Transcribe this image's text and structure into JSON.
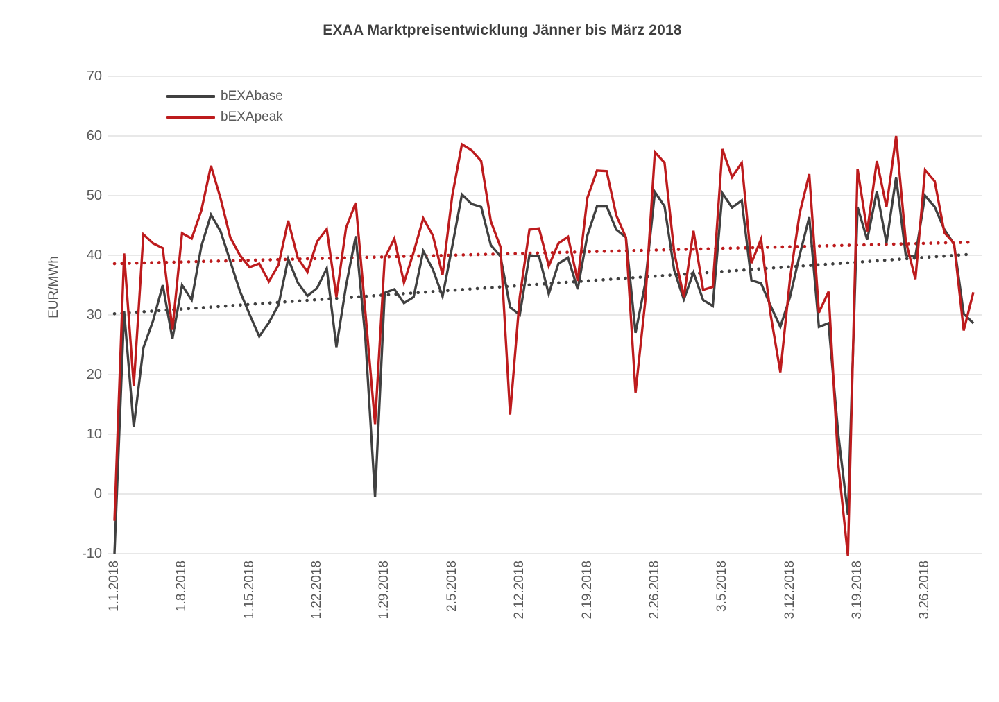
{
  "title": "EXAA Marktpreisentwicklung Jänner bis März 2018",
  "colors": {
    "grid": "#D9D9D9",
    "text": "#595959",
    "title": "#404040",
    "background": "#FFFFFF"
  },
  "y_axis": {
    "label": "EUR/MWh",
    "ticks": [
      70,
      60,
      50,
      40,
      30,
      20,
      10,
      0,
      -10
    ]
  },
  "x_axis": {
    "tick_labels": [
      "1.1.2018",
      "1.8.2018",
      "1.15.2018",
      "1.22.2018",
      "1.29.2018",
      "2.5.2018",
      "2.12.2018",
      "2.19.2018",
      "2.26.2018",
      "3.5.2018",
      "3.12.2018",
      "3.19.2018",
      "3.26.2018"
    ]
  },
  "legend": {
    "items": [
      {
        "label": "bEXAbase",
        "color": "#404040"
      },
      {
        "label": "bEXApeak",
        "color": "#BD1B1D"
      }
    ]
  },
  "chart_data": {
    "type": "line",
    "title": "EXAA Marktpreisentwicklung Jänner bis März 2018",
    "ylabel": "EUR/MWh",
    "ylim": [
      -10,
      70
    ],
    "grid": "horizontal",
    "legend_position": "top-left-inside",
    "xtick_step": 7,
    "xtick_labels": [
      "1.1.2018",
      "1.8.2018",
      "1.15.2018",
      "1.22.2018",
      "1.29.2018",
      "2.5.2018",
      "2.12.2018",
      "2.19.2018",
      "2.26.2018",
      "3.5.2018",
      "3.12.2018",
      "3.19.2018",
      "3.26.2018"
    ],
    "x_dates": [
      "1.1.2018",
      "1.2.2018",
      "1.3.2018",
      "1.4.2018",
      "1.5.2018",
      "1.6.2018",
      "1.7.2018",
      "1.8.2018",
      "1.9.2018",
      "1.10.2018",
      "1.11.2018",
      "1.12.2018",
      "1.13.2018",
      "1.14.2018",
      "1.15.2018",
      "1.16.2018",
      "1.17.2018",
      "1.18.2018",
      "1.19.2018",
      "1.20.2018",
      "1.21.2018",
      "1.22.2018",
      "1.23.2018",
      "1.24.2018",
      "1.25.2018",
      "1.26.2018",
      "1.27.2018",
      "1.28.2018",
      "1.29.2018",
      "1.30.2018",
      "1.31.2018",
      "2.1.2018",
      "2.2.2018",
      "2.3.2018",
      "2.4.2018",
      "2.5.2018",
      "2.6.2018",
      "2.7.2018",
      "2.8.2018",
      "2.9.2018",
      "2.10.2018",
      "2.11.2018",
      "2.12.2018",
      "2.13.2018",
      "2.14.2018",
      "2.15.2018",
      "2.16.2018",
      "2.17.2018",
      "2.18.2018",
      "2.19.2018",
      "2.20.2018",
      "2.21.2018",
      "2.22.2018",
      "2.23.2018",
      "2.24.2018",
      "2.25.2018",
      "2.26.2018",
      "2.27.2018",
      "2.28.2018",
      "3.1.2018",
      "3.2.2018",
      "3.3.2018",
      "3.4.2018",
      "3.5.2018",
      "3.6.2018",
      "3.7.2018",
      "3.8.2018",
      "3.9.2018",
      "3.10.2018",
      "3.11.2018",
      "3.12.2018",
      "3.13.2018",
      "3.14.2018",
      "3.15.2018",
      "3.16.2018",
      "3.17.2018",
      "3.18.2018",
      "3.19.2018",
      "3.20.2018",
      "3.21.2018",
      "3.22.2018",
      "3.23.2018",
      "3.24.2018",
      "3.25.2018",
      "3.26.2018",
      "3.27.2018",
      "3.28.2018",
      "3.29.2018",
      "3.30.2018",
      "3.31.2018"
    ],
    "series": [
      {
        "name": "bEXAbase",
        "color": "#404040",
        "values": [
          -10.0,
          30.6,
          11.2,
          24.5,
          29.0,
          35.0,
          26.0,
          35.0,
          32.5,
          41.5,
          46.8,
          44.0,
          39.0,
          34.0,
          30.1,
          26.4,
          28.7,
          31.7,
          39.4,
          35.4,
          33.2,
          34.5,
          37.8,
          24.6,
          34.9,
          43.2,
          26.0,
          -0.5,
          33.7,
          34.3,
          32.0,
          33.0,
          40.7,
          37.6,
          33.1,
          41.5,
          50.2,
          48.6,
          48.1,
          41.7,
          39.8,
          31.3,
          30.0,
          40.0,
          39.8,
          33.5,
          38.6,
          39.6,
          34.3,
          43.3,
          48.2,
          48.2,
          44.3,
          43.0,
          27.0,
          35.3,
          50.6,
          48.2,
          37.5,
          32.6,
          37.1,
          32.5,
          31.5,
          50.4,
          48.0,
          49.2,
          35.8,
          35.3,
          31.5,
          28.0,
          33.0,
          40.0,
          46.4,
          28.0,
          28.6,
          10.0,
          -3.5,
          48.1,
          42.6,
          50.7,
          42.1,
          53.1,
          40.0,
          39.8,
          50.0,
          48.1,
          44.3,
          41.9,
          30.2,
          28.6
        ]
      },
      {
        "name": "bEXApeak",
        "color": "#BD1B1D",
        "values": [
          -4.5,
          40.3,
          18.1,
          43.5,
          42.0,
          41.2,
          27.5,
          43.7,
          42.8,
          47.5,
          55.0,
          49.5,
          43.0,
          40.0,
          38.0,
          38.6,
          35.6,
          38.4,
          45.8,
          39.5,
          37.2,
          42.3,
          44.4,
          33.0,
          44.6,
          48.8,
          30.4,
          11.7,
          39.5,
          42.8,
          35.4,
          40.5,
          46.2,
          43.3,
          36.7,
          50.0,
          58.6,
          57.6,
          55.8,
          45.7,
          41.4,
          13.3,
          33.0,
          44.3,
          44.5,
          38.2,
          42.0,
          43.1,
          35.7,
          49.6,
          54.2,
          54.1,
          46.7,
          43.0,
          17.0,
          32.3,
          57.3,
          55.5,
          40.5,
          33.0,
          44.1,
          34.2,
          34.7,
          57.8,
          53.1,
          55.5,
          38.7,
          42.7,
          30.0,
          20.4,
          36.0,
          47.0,
          53.6,
          30.4,
          33.9,
          5.0,
          -10.4,
          54.5,
          44.0,
          55.8,
          48.1,
          60.0,
          42.4,
          36.0,
          54.3,
          52.4,
          43.8,
          42.0,
          27.4,
          33.8
        ]
      }
    ],
    "trendlines": [
      {
        "series": "bEXAbase",
        "style": "dotted",
        "color": "#404040",
        "start_value": 30.2,
        "end_value": 40.2
      },
      {
        "series": "bEXApeak",
        "style": "dotted",
        "color": "#BD1B1D",
        "start_value": 38.6,
        "end_value": 42.2
      }
    ]
  }
}
